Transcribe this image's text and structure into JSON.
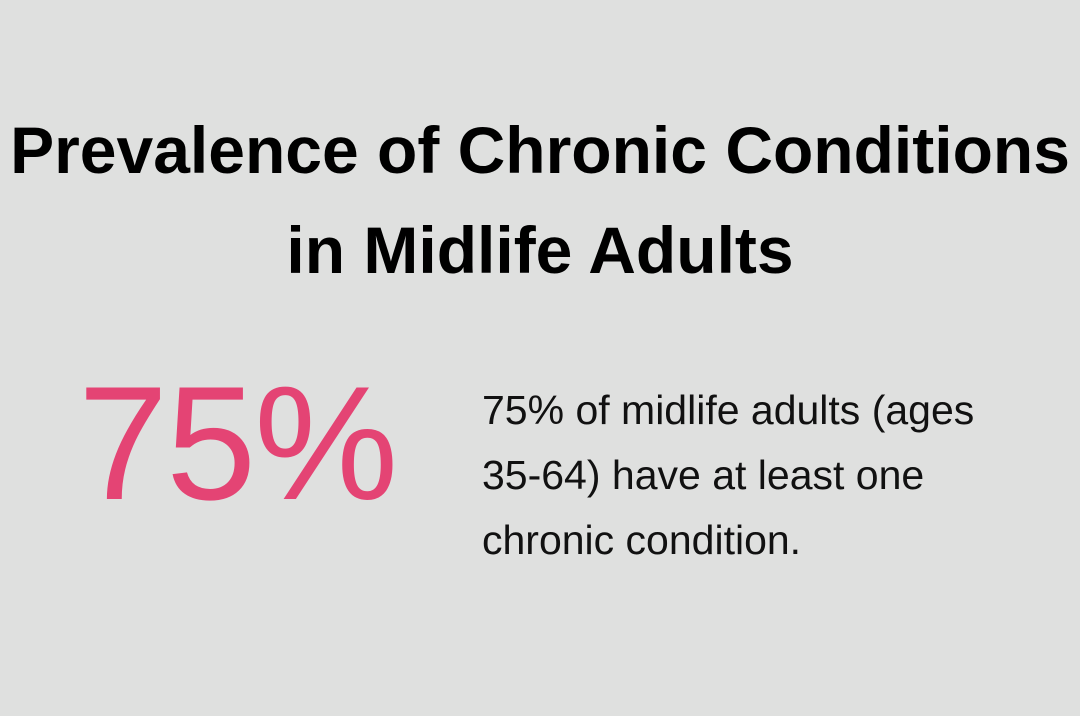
{
  "title": "Prevalence of Chronic Conditions in Midlife Adults",
  "stat": {
    "value": "75%",
    "description": "75% of midlife adults (ages 35-64) have at least one chronic condition.",
    "accent_color": "#e44474"
  },
  "background_color": "#dfe0df"
}
